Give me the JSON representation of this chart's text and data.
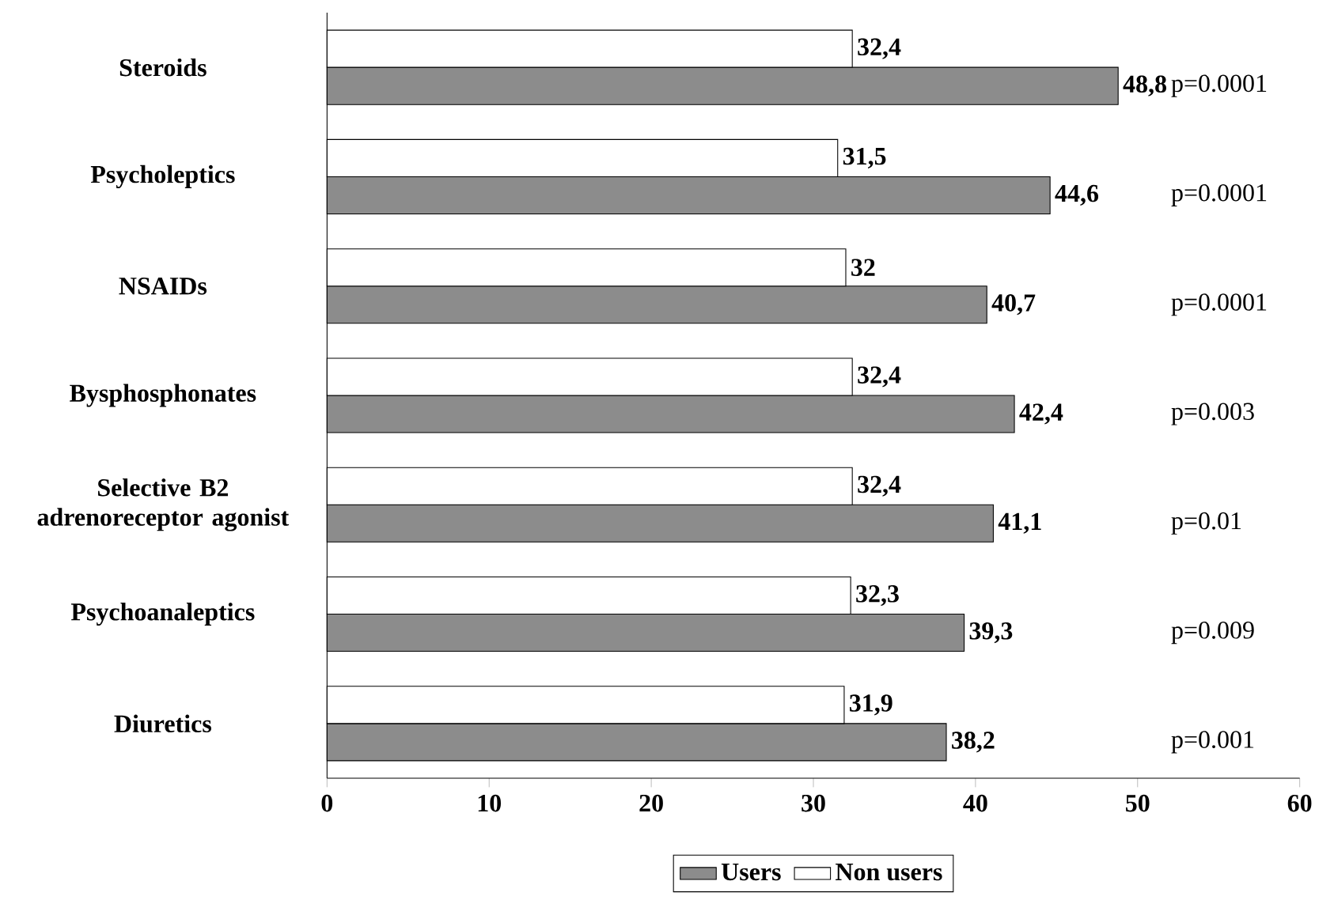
{
  "chart_data": {
    "type": "bar",
    "orientation": "horizontal",
    "categories": [
      "Steroids",
      "Psycholeptics",
      "NSAIDs",
      "Bysphosphonates",
      "Selective B2 adrenoreceptor agonist",
      "Psychoanaleptics",
      "Diuretics"
    ],
    "series": [
      {
        "name": "Users",
        "color": "#8c8c8c",
        "values": [
          48.8,
          44.6,
          40.7,
          42.4,
          41.1,
          39.3,
          38.2
        ],
        "value_labels": [
          "48,8",
          "44,6",
          "40,7",
          "42,4",
          "41,1",
          "39,3",
          "38,2"
        ]
      },
      {
        "name": "Non users",
        "color": "#ffffff",
        "values": [
          32.4,
          31.5,
          32,
          32.4,
          32.4,
          32.3,
          31.9
        ],
        "value_labels": [
          "32,4",
          "31,5",
          "32",
          "32,4",
          "32,4",
          "32,3",
          "31,9"
        ]
      }
    ],
    "xlim": [
      0,
      60
    ],
    "xticks": [
      0,
      10,
      20,
      30,
      40,
      50,
      60
    ],
    "grid": false,
    "legend": "bottom",
    "annotations": [
      "p=0.0001",
      "p=0.0001",
      "p=0.0001",
      "p=0.003",
      "p=0.01",
      "p=0.009",
      "p=0.001"
    ]
  }
}
